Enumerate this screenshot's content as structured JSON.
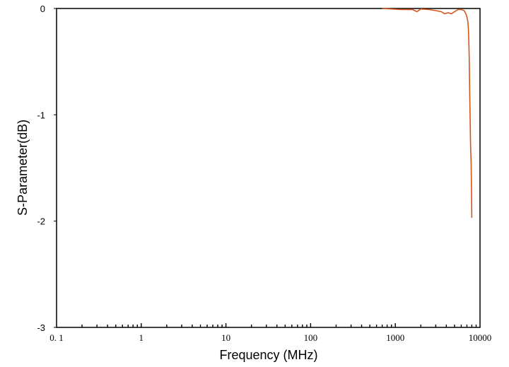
{
  "chart_data": {
    "type": "line",
    "title": "",
    "xlabel": "Frequency (MHz)",
    "ylabel": "S-Parameter(dB)",
    "x_scale": "log",
    "xlim": [
      0.1,
      10000
    ],
    "ylim": [
      -3,
      0
    ],
    "x_tick_labels": [
      "0. 1",
      "1",
      "10",
      "100",
      "1000",
      "10000"
    ],
    "x_tick_values": [
      0.1,
      1,
      10,
      100,
      1000,
      10000
    ],
    "y_tick_labels": [
      "0",
      "-1",
      "-2",
      "-3"
    ],
    "y_tick_values": [
      0,
      -1,
      -2,
      -3
    ],
    "grid": false,
    "legend": "none",
    "series": [
      {
        "color": "#d9531e",
        "x": [
          700,
          900,
          1200,
          1600,
          1800,
          2000,
          2500,
          3000,
          3500,
          3800,
          4200,
          4600,
          5000,
          5500,
          6000,
          6500,
          6800,
          7000,
          7100,
          7200,
          7300,
          7400,
          7450,
          7500,
          7550,
          7600,
          7650,
          7700,
          7750,
          7800,
          7850,
          7900,
          7950,
          8000
        ],
        "y": [
          0.0,
          -0.005,
          -0.01,
          -0.01,
          -0.03,
          -0.005,
          -0.01,
          -0.02,
          -0.03,
          -0.05,
          -0.04,
          -0.05,
          -0.03,
          -0.01,
          -0.01,
          -0.02,
          -0.05,
          -0.08,
          -0.1,
          -0.13,
          -0.2,
          -0.35,
          -0.45,
          -0.6,
          -0.78,
          -0.92,
          -1.05,
          -1.2,
          -1.32,
          -1.38,
          -1.45,
          -1.6,
          -1.8,
          -1.97
        ]
      }
    ]
  }
}
